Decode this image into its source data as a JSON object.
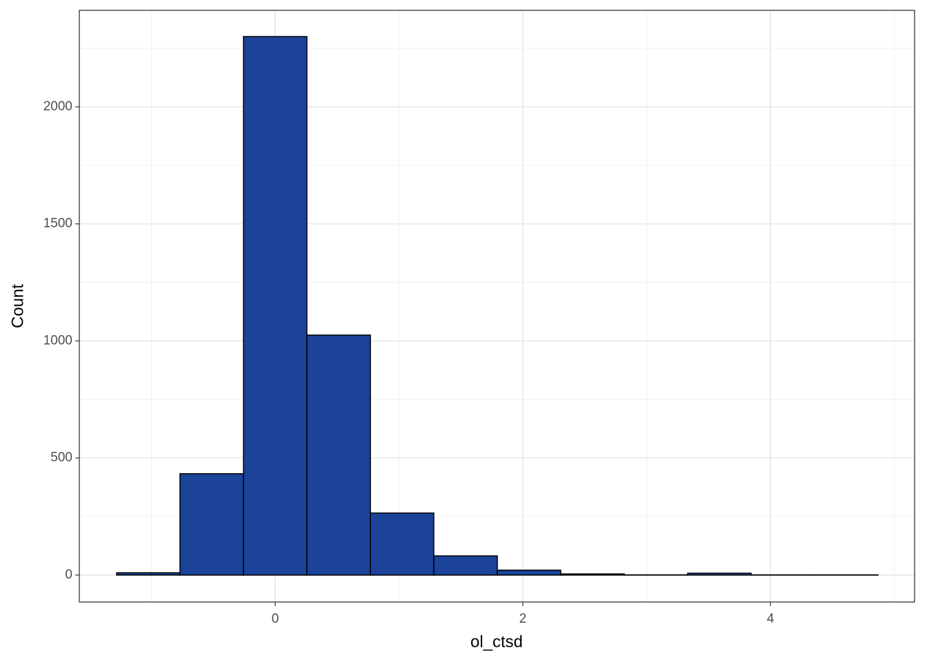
{
  "chart_data": {
    "type": "histogram",
    "x_label": "ol_ctsd",
    "y_label": "Count",
    "bins": [
      -1.281,
      -0.769,
      -0.256,
      0.256,
      0.769,
      1.281,
      1.794,
      2.306,
      2.819,
      3.331,
      3.844,
      4.356,
      4.869
    ],
    "values": [
      10,
      433,
      2300,
      1025,
      265,
      82,
      21,
      5,
      1,
      8,
      1,
      1
    ],
    "color": "#1a4399",
    "edge_color": "#000000",
    "xlim": [
      -1.582,
      5.164
    ],
    "ylim": [
      -115,
      2412
    ],
    "xticks": [
      0,
      2,
      4
    ],
    "yticks": [
      0,
      500,
      1000,
      1500,
      2000
    ],
    "xminor": [
      -1,
      1,
      3,
      5
    ],
    "yminor": [
      250,
      750,
      1250,
      1750,
      2250
    ],
    "grid": true
  }
}
